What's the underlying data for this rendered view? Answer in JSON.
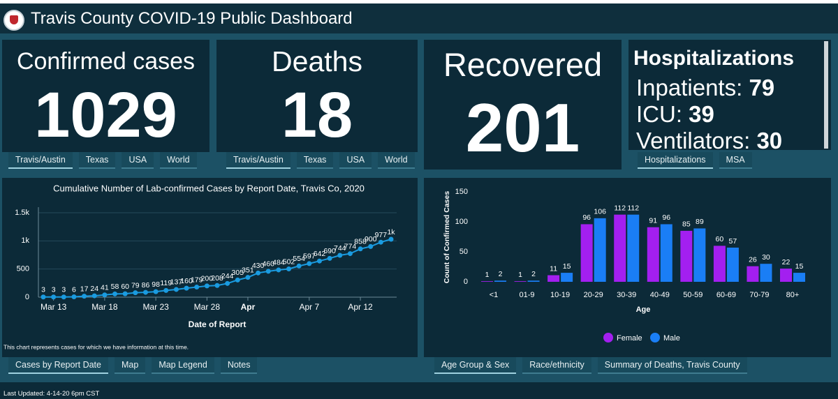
{
  "header": {
    "title": "Travis County COVID-19 Public Dashboard"
  },
  "cards": [
    {
      "title": "Confirmed cases",
      "value": 1029,
      "tabs": [
        "Travis/Austin",
        "Texas",
        "USA",
        "World"
      ]
    },
    {
      "title": "Deaths",
      "value": 18,
      "tabs": [
        "Travis/Austin",
        "Texas",
        "USA",
        "World"
      ]
    },
    {
      "title": "Recovered",
      "value": 201
    }
  ],
  "hospitalizations": {
    "title": "Hospitalizations",
    "items": [
      {
        "label": "Inpatients:",
        "value": 79
      },
      {
        "label": "ICU:",
        "value": 39
      },
      {
        "label": "Ventilators:",
        "value": 30
      }
    ],
    "tabs": [
      "Hospitalizations",
      "MSA"
    ]
  },
  "line_chart": {
    "type": "line",
    "title": "Cumulative Number of Lab-confirmed Cases by Report Date, Travis Co, 2020",
    "categories": [
      null,
      "Mar 13",
      null,
      null,
      null,
      null,
      "Mar 18",
      null,
      null,
      null,
      null,
      "Mar 23",
      null,
      null,
      null,
      null,
      "Mar 28",
      null,
      null,
      null,
      "Apr",
      null,
      null,
      null,
      null,
      null,
      "Apr 7",
      null,
      null,
      null,
      null,
      "Apr 12",
      null,
      null,
      null
    ],
    "values": [
      3,
      3,
      3,
      6,
      17,
      24,
      41,
      58,
      60,
      79,
      86,
      98,
      119,
      137,
      160,
      179,
      200,
      208,
      244,
      305,
      351,
      430,
      460,
      484,
      502,
      554,
      597,
      642,
      690,
      744,
      774,
      858,
      900,
      977,
      1029
    ],
    "value_labels": [
      "3",
      "3",
      "3",
      "6",
      "17",
      "24",
      "41",
      "58",
      "60",
      "79",
      "86",
      "98",
      "119",
      "137",
      "160",
      "179",
      "200",
      "208",
      "244",
      "305",
      "351",
      "430",
      "460",
      "484",
      "502",
      "554",
      "597",
      "642",
      "690",
      "744",
      "774",
      "858",
      "900",
      "977",
      "1k"
    ],
    "color": "#1a9be0",
    "ylim": [
      0,
      1500
    ],
    "yticks": [
      0,
      500,
      {
        "value": 1000,
        "label": "1k"
      },
      {
        "value": 1500,
        "label": "1.5k"
      }
    ],
    "grid": true,
    "xlabel": "Date of Report",
    "note": "This chart represents cases for which we have information at this time.",
    "tabs": [
      "Cases by Report Date",
      "Map",
      "Map Legend",
      "Notes"
    ]
  },
  "bar_chart": {
    "type": "bar",
    "categories": [
      "<1",
      "01-9",
      "10-19",
      "20-29",
      "30-39",
      "40-49",
      "50-59",
      "60-69",
      "70-79",
      "80+"
    ],
    "series": [
      {
        "name": "Female",
        "color": "#a31ff0",
        "values": [
          1,
          1,
          11,
          96,
          112,
          91,
          85,
          60,
          26,
          22
        ]
      },
      {
        "name": "Male",
        "color": "#1a7ef5",
        "values": [
          2,
          2,
          15,
          106,
          112,
          96,
          89,
          57,
          30,
          15
        ]
      }
    ],
    "ylim": [
      0,
      150
    ],
    "yticks": [
      0,
      50,
      100,
      150
    ],
    "xlabel": "Age",
    "ylabel": "Count of Confirmed Cases",
    "tabs": [
      "Age Group & Sex",
      "Race/ethnicity",
      "Summary of Deaths, Travis County"
    ]
  },
  "footer": {
    "last_updated": "Last Updated: 4-14-20 6pm CST"
  }
}
